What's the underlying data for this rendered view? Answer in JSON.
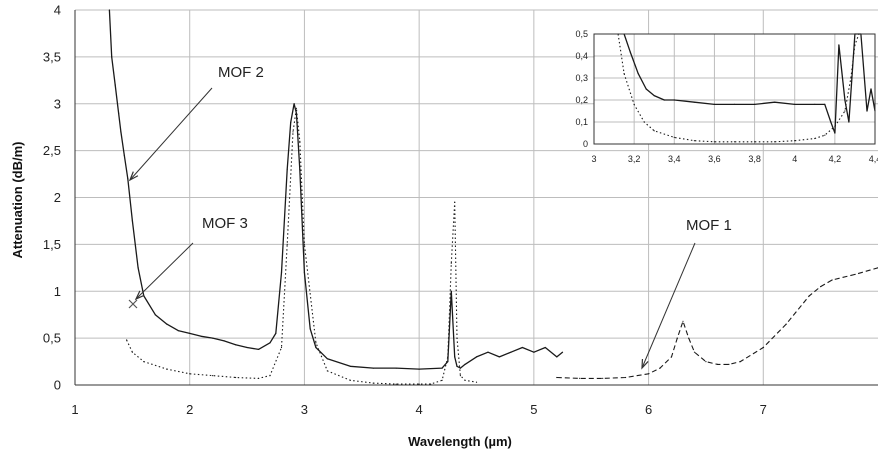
{
  "chart_data": [
    {
      "type": "line",
      "xlabel": "Wavelength (µm)",
      "ylabel": "Attenuation (dB/m)",
      "xlim": [
        1,
        8
      ],
      "ylim": [
        0,
        4
      ],
      "x_ticks": [
        "1",
        "2",
        "3",
        "4",
        "5",
        "6",
        "7"
      ],
      "y_ticks": [
        "0",
        "0,5",
        "1",
        "1,5",
        "2",
        "2,5",
        "3",
        "3,5",
        "4"
      ],
      "grid": true,
      "annotations": [
        {
          "text": "MOF 2",
          "points_to": [
            1.48,
            2.2
          ]
        },
        {
          "text": "MOF 3",
          "points_to": [
            1.55,
            0.95
          ]
        },
        {
          "text": "MOF 1",
          "points_to": [
            5.88,
            0.2
          ]
        }
      ],
      "series": [
        {
          "style": "solid",
          "x": [
            1.3,
            1.32,
            1.35,
            1.38,
            1.4,
            1.43,
            1.46,
            1.5,
            1.55,
            1.6,
            1.7,
            1.8,
            1.9,
            2.0,
            2.1,
            2.2,
            2.3,
            2.4,
            2.5,
            2.6,
            2.7,
            2.75,
            2.8,
            2.85,
            2.88,
            2.91,
            2.93,
            2.96,
            3.0,
            3.05,
            3.1,
            3.2,
            3.4,
            3.6,
            3.8,
            4.0,
            4.2,
            4.25,
            4.28,
            4.31,
            4.33,
            4.36,
            4.4,
            4.5,
            4.6,
            4.7,
            4.8,
            4.9,
            5.0,
            5.1,
            5.2,
            5.25
          ],
          "y": [
            4.0,
            3.5,
            3.2,
            2.9,
            2.7,
            2.45,
            2.2,
            1.75,
            1.25,
            0.95,
            0.75,
            0.65,
            0.58,
            0.55,
            0.52,
            0.5,
            0.47,
            0.43,
            0.4,
            0.38,
            0.45,
            0.55,
            1.2,
            2.3,
            2.8,
            3.0,
            2.9,
            2.3,
            1.2,
            0.6,
            0.4,
            0.28,
            0.2,
            0.18,
            0.18,
            0.17,
            0.18,
            0.25,
            1.0,
            0.3,
            0.2,
            0.18,
            0.22,
            0.3,
            0.35,
            0.3,
            0.35,
            0.4,
            0.35,
            0.4,
            0.3,
            0.35
          ]
        },
        {
          "style": "dotted",
          "x": [
            1.45,
            1.5,
            1.6,
            1.8,
            2.0,
            2.2,
            2.4,
            2.6,
            2.7,
            2.8,
            2.85,
            2.9,
            2.93,
            2.96,
            3.0,
            3.1,
            3.2,
            3.4,
            3.6,
            3.8,
            4.0,
            4.1,
            4.2,
            4.25,
            4.28,
            4.31,
            4.33,
            4.36,
            4.4,
            4.5
          ],
          "y": [
            0.48,
            0.35,
            0.25,
            0.17,
            0.12,
            0.1,
            0.08,
            0.07,
            0.1,
            0.4,
            1.5,
            2.7,
            2.95,
            2.6,
            1.5,
            0.45,
            0.15,
            0.05,
            0.02,
            0.01,
            0.01,
            0.01,
            0.05,
            0.3,
            1.3,
            1.95,
            0.5,
            0.1,
            0.05,
            0.03
          ]
        },
        {
          "style": "dashed",
          "x": [
            5.2,
            5.4,
            5.6,
            5.8,
            6.0,
            6.1,
            6.2,
            6.25,
            6.3,
            6.35,
            6.4,
            6.5,
            6.6,
            6.7,
            6.8,
            7.0,
            7.2,
            7.4,
            7.5,
            7.6,
            7.8,
            8.0
          ],
          "y": [
            0.08,
            0.07,
            0.07,
            0.08,
            0.12,
            0.18,
            0.3,
            0.5,
            0.68,
            0.5,
            0.35,
            0.25,
            0.22,
            0.22,
            0.25,
            0.4,
            0.65,
            0.95,
            1.05,
            1.12,
            1.18,
            1.25
          ]
        }
      ]
    },
    {
      "type": "line",
      "inset": true,
      "xlim": [
        3,
        4.4
      ],
      "ylim": [
        0,
        0.5
      ],
      "x_ticks": [
        "3",
        "3,2",
        "3,4",
        "3,6",
        "3,8",
        "4",
        "4,2",
        "4,4"
      ],
      "y_ticks": [
        "0",
        "0,1",
        "0,2",
        "0,3",
        "0,4",
        "0,5"
      ],
      "grid": true,
      "series": [
        {
          "style": "solid",
          "x": [
            3.15,
            3.18,
            3.22,
            3.26,
            3.3,
            3.35,
            3.4,
            3.5,
            3.6,
            3.7,
            3.8,
            3.9,
            4.0,
            4.1,
            4.15,
            4.18,
            4.2,
            4.22,
            4.25,
            4.27,
            4.3,
            4.33,
            4.36,
            4.38,
            4.4
          ],
          "y": [
            0.5,
            0.42,
            0.32,
            0.25,
            0.22,
            0.2,
            0.2,
            0.19,
            0.18,
            0.18,
            0.18,
            0.19,
            0.18,
            0.18,
            0.18,
            0.1,
            0.05,
            0.45,
            0.2,
            0.1,
            0.5,
            0.5,
            0.15,
            0.25,
            0.15
          ]
        },
        {
          "style": "dotted",
          "x": [
            3.12,
            3.15,
            3.2,
            3.25,
            3.3,
            3.4,
            3.5,
            3.6,
            3.7,
            3.8,
            3.9,
            4.0,
            4.1,
            4.15,
            4.2,
            4.25,
            4.28,
            4.3,
            4.32
          ],
          "y": [
            0.5,
            0.32,
            0.18,
            0.1,
            0.06,
            0.03,
            0.015,
            0.01,
            0.01,
            0.01,
            0.01,
            0.015,
            0.025,
            0.04,
            0.08,
            0.15,
            0.3,
            0.45,
            0.5
          ]
        }
      ]
    }
  ],
  "colors": {
    "series_main": "#1a1a1a",
    "grid": "#bdbdbd",
    "axis": "#333333"
  }
}
